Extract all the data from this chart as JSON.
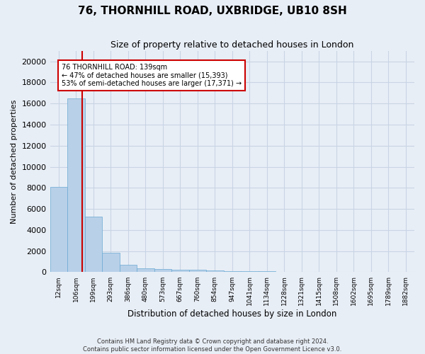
{
  "title": "76, THORNHILL ROAD, UXBRIDGE, UB10 8SH",
  "subtitle": "Size of property relative to detached houses in London",
  "xlabel": "Distribution of detached houses by size in London",
  "ylabel": "Number of detached properties",
  "categories": [
    "12sqm",
    "106sqm",
    "199sqm",
    "293sqm",
    "386sqm",
    "480sqm",
    "573sqm",
    "667sqm",
    "760sqm",
    "854sqm",
    "947sqm",
    "1041sqm",
    "1134sqm",
    "1228sqm",
    "1321sqm",
    "1415sqm",
    "1508sqm",
    "1602sqm",
    "1695sqm",
    "1789sqm",
    "1882sqm"
  ],
  "values": [
    8100,
    16500,
    5300,
    1850,
    700,
    370,
    270,
    220,
    200,
    170,
    130,
    100,
    80,
    60,
    50,
    40,
    30,
    25,
    20,
    15,
    10
  ],
  "bar_color": "#b8d0e8",
  "bar_edge_color": "#6aaad4",
  "grid_color": "#c8d4e4",
  "background_color": "#e8eef6",
  "annotation_text": "76 THORNHILL ROAD: 139sqm\n← 47% of detached houses are smaller (15,393)\n53% of semi-detached houses are larger (17,371) →",
  "annotation_box_color": "#ffffff",
  "annotation_border_color": "#cc0000",
  "vline_x": 1.35,
  "vline_color": "#cc0000",
  "ylim": [
    0,
    21000
  ],
  "yticks": [
    0,
    2000,
    4000,
    6000,
    8000,
    10000,
    12000,
    14000,
    16000,
    18000,
    20000
  ],
  "footer_line1": "Contains HM Land Registry data © Crown copyright and database right 2024.",
  "footer_line2": "Contains public sector information licensed under the Open Government Licence v3.0."
}
